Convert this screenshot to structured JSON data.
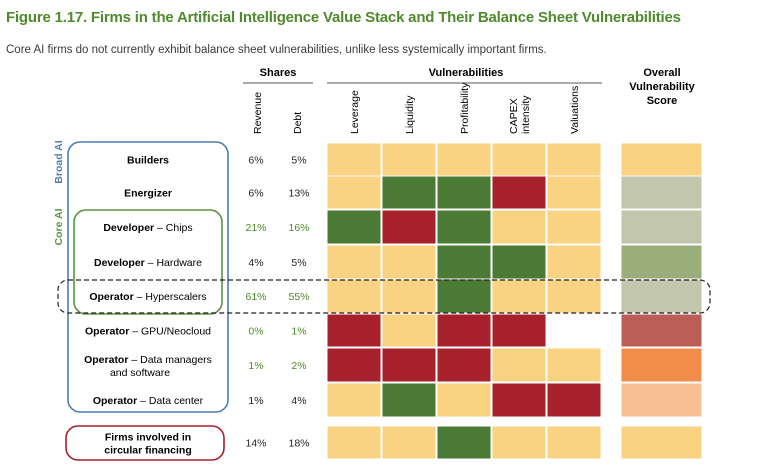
{
  "title": "Figure 1.17. Firms in the Artificial Intelligence Value Stack and Their Balance Sheet Vulnerabilities",
  "subtitle": "Core AI firms do not currently exhibit balance sheet vulnerabilities, unlike less systemically important firms.",
  "group_headers": {
    "shares": "Shares",
    "vulnerabilities": "Vulnerabilities",
    "overall": [
      "Overall",
      "Vulnerability",
      "Score"
    ]
  },
  "side_labels": {
    "broad_ai": "Broad AI",
    "core_ai": "Core AI"
  },
  "colors": {
    "low": "#f9d282",
    "medium_low": "#c1c6ad",
    "medium": "#9aad7a",
    "high_green": "#4a7a33",
    "red": "#a6212c",
    "orange": "#f28c4a",
    "peach": "#f8bf95",
    "rose": "#bc5e55",
    "none": "#ffffff",
    "title_green": "#4f8a2c",
    "frame_blue": "#4d7fb8",
    "frame_green": "#5a9340",
    "frame_red": "#a6212c"
  },
  "chart_data": {
    "type": "table",
    "share_columns": [
      "Revenue",
      "Debt"
    ],
    "vulnerability_columns": [
      "Leverage",
      "Liquidity",
      "Profitability",
      "CAPEX intensity",
      "Valuations"
    ],
    "overall_column": "Overall Vulnerability Score",
    "rows": [
      {
        "name": "Builders",
        "detail": "",
        "revenue": "6%",
        "debt": "5%",
        "highlight_shares": false,
        "cells": [
          "low",
          "low",
          "low",
          "low",
          "low"
        ],
        "overall": "low"
      },
      {
        "name": "Energizer",
        "detail": "",
        "revenue": "6%",
        "debt": "13%",
        "highlight_shares": false,
        "cells": [
          "low",
          "high_green",
          "high_green",
          "red",
          "low"
        ],
        "overall": "medium_low"
      },
      {
        "name": "Developer",
        "detail": "Chips",
        "revenue": "21%",
        "debt": "16%",
        "highlight_shares": true,
        "cells": [
          "high_green",
          "red",
          "high_green",
          "low",
          "low"
        ],
        "overall": "medium_low"
      },
      {
        "name": "Developer",
        "detail": "Hardware",
        "revenue": "4%",
        "debt": "5%",
        "highlight_shares": false,
        "cells": [
          "low",
          "low",
          "high_green",
          "high_green",
          "low"
        ],
        "overall": "medium"
      },
      {
        "name": "Operator",
        "detail": "Hyperscalers",
        "revenue": "61%",
        "debt": "55%",
        "highlight_shares": true,
        "cells": [
          "low",
          "low",
          "high_green",
          "low",
          "low"
        ],
        "overall": "medium_low"
      },
      {
        "name": "Operator",
        "detail": "GPU/Neocloud",
        "revenue": "0%",
        "debt": "1%",
        "highlight_shares": true,
        "cells": [
          "red",
          "low",
          "red",
          "red",
          "none"
        ],
        "overall": "rose"
      },
      {
        "name": "Operator",
        "detail": "Data managers and software",
        "detail_lines": [
          "Data managers",
          "and software"
        ],
        "revenue": "1%",
        "debt": "2%",
        "highlight_shares": true,
        "cells": [
          "red",
          "red",
          "red",
          "low",
          "low"
        ],
        "overall": "orange"
      },
      {
        "name": "Operator",
        "detail": "Data center",
        "revenue": "1%",
        "debt": "4%",
        "highlight_shares": false,
        "cells": [
          "low",
          "high_green",
          "low",
          "red",
          "red"
        ],
        "overall": "peach"
      },
      {
        "name": "Firms involved in circular financing",
        "name_lines": [
          "Firms involved in",
          "circular financing"
        ],
        "detail": "",
        "revenue": "14%",
        "debt": "18%",
        "highlight_shares": false,
        "cells": [
          "low",
          "low",
          "high_green",
          "low",
          "low"
        ],
        "overall": "low"
      }
    ]
  }
}
